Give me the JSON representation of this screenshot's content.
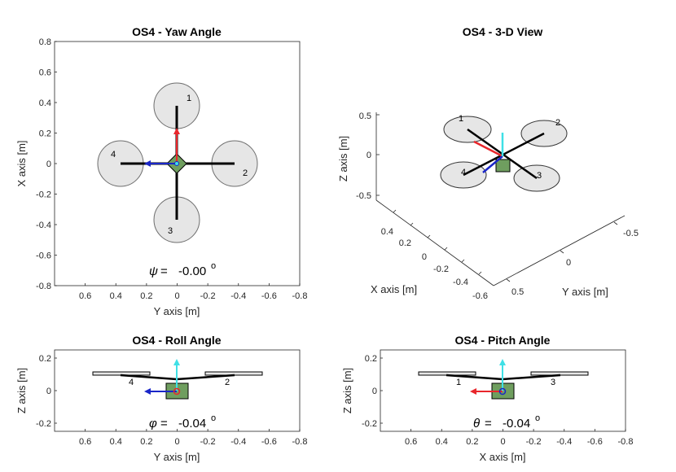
{
  "colors": {
    "axis": "#262626",
    "rotor_fill": "#e6e6e6",
    "rotor_stroke": "#6e6e6e",
    "body_fill": "#6f9e5f",
    "x_arrow": "#e8262b",
    "y_arrow": "#1a26c8",
    "z_arrow": "#3fe0e6",
    "arm": "#000000"
  },
  "chart_data": [
    {
      "type": "diagram-plot",
      "title": "OS4 - Yaw Angle",
      "xlabel": "Y axis   [m]",
      "ylabel": "X axis   [m]",
      "xlim": [
        0.8,
        -0.8
      ],
      "ylim": [
        -0.8,
        0.8
      ],
      "xticks": [
        "0.6",
        "0.4",
        "0.2",
        "0",
        "-0.2",
        "-0.4",
        "-0.6",
        "-0.8"
      ],
      "yticks": [
        "0.8",
        "0.6",
        "0.4",
        "0.2",
        "0",
        "-0.2",
        "-0.4",
        "-0.6",
        "-0.8"
      ],
      "angle_symbol": "ψ",
      "angle_eq": "=",
      "angle_value": "-0.00",
      "angle_unit": "o",
      "rotor_labels": [
        "1",
        "2",
        "3",
        "4"
      ]
    },
    {
      "type": "diagram-3d",
      "title": "OS4 - 3-D View",
      "zlabel": "Z axis   [m]",
      "xlabel": "X axis   [m]",
      "ylabel": "Y axis   [m]",
      "zticks": [
        "0.5",
        "0",
        "-0.5"
      ],
      "xticks": [
        "0.4",
        "0.2",
        "0",
        "-0.2",
        "-0.4",
        "-0.6"
      ],
      "yticks": [
        "-0.5",
        "0",
        "0.5"
      ],
      "rotor_labels": [
        "1",
        "2",
        "3",
        "4"
      ]
    },
    {
      "type": "diagram-plot",
      "title": "OS4 - Roll Angle",
      "xlabel": "Y axis   [m]",
      "ylabel": "Z axis   [m]",
      "xlim": [
        0.8,
        -0.8
      ],
      "ylim": [
        -0.25,
        0.25
      ],
      "xticks": [
        "0.6",
        "0.4",
        "0.2",
        "0",
        "-0.2",
        "-0.4",
        "-0.6",
        "-0.8"
      ],
      "yticks": [
        "0.2",
        "0",
        "-0.2"
      ],
      "angle_symbol": "φ",
      "angle_eq": "=",
      "angle_value": "-0.04",
      "angle_unit": "o",
      "rotor_labels": [
        "4",
        "2"
      ]
    },
    {
      "type": "diagram-plot",
      "title": "OS4 - Pitch Angle",
      "xlabel": "X axis   [m]",
      "ylabel": "Z axis   [m]",
      "xlim": [
        0.8,
        -0.8
      ],
      "ylim": [
        -0.25,
        0.25
      ],
      "xticks": [
        "0.6",
        "0.4",
        "0.2",
        "0",
        "-0.2",
        "-0.4",
        "-0.6",
        "-0.8"
      ],
      "yticks": [
        "0.2",
        "0",
        "-0.2"
      ],
      "angle_symbol": "θ",
      "angle_eq": "=",
      "angle_value": "-0.04",
      "angle_unit": "o",
      "rotor_labels": [
        "1",
        "3"
      ]
    }
  ]
}
